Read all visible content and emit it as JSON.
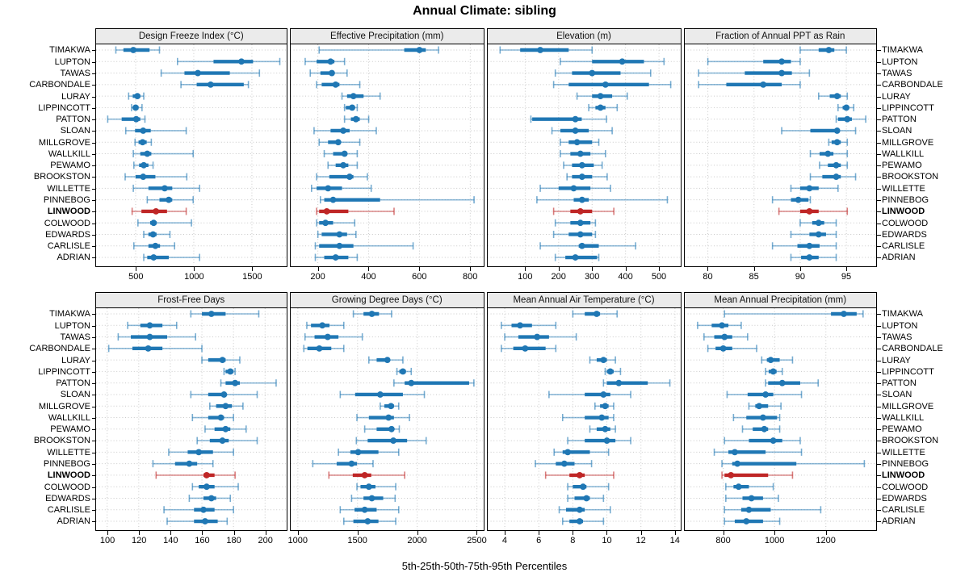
{
  "title": "Annual Climate: sibling",
  "xlabel": "5th-25th-50th-75th-95th Percentiles",
  "colors": {
    "series": "#1f77b4",
    "highlight": "#bf2626",
    "strip_bg": "#ebebeb",
    "grid": "#c9c9c9",
    "border": "#000000"
  },
  "chart_data": {
    "type": "percentile_dot_plot",
    "title": "Annual Climate: sibling",
    "xlabel": "5th-25th-50th-75th-95th Percentiles",
    "percentiles": [
      5,
      25,
      50,
      75,
      95
    ],
    "grid": "dotted",
    "legend_position": "none",
    "highlight_site": "LINWOOD",
    "sites": [
      "TIMAKWA",
      "LUPTON",
      "TAWAS",
      "CARBONDALE",
      "LURAY",
      "LIPPINCOTT",
      "PATTON",
      "SLOAN",
      "MILLGROVE",
      "WALLKILL",
      "PEWAMO",
      "BROOKSTON",
      "WILLETTE",
      "PINNEBOG",
      "LINWOOD",
      "COLWOOD",
      "EDWARDS",
      "CARLISLE",
      "ADRIAN"
    ],
    "panels": [
      {
        "title": "Design Freeze Index (°C)",
        "xlim": [
          160,
          1790
        ],
        "xticks": [
          500,
          1000,
          1500
        ],
        "values": [
          [
            330,
            395,
            480,
            620,
            705
          ],
          [
            860,
            1170,
            1410,
            1510,
            1740
          ],
          [
            720,
            920,
            1035,
            1310,
            1565
          ],
          [
            890,
            1025,
            1145,
            1430,
            1470
          ],
          [
            440,
            475,
            515,
            540,
            570
          ],
          [
            465,
            480,
            500,
            525,
            555
          ],
          [
            260,
            380,
            505,
            540,
            580
          ],
          [
            415,
            495,
            565,
            630,
            935
          ],
          [
            495,
            525,
            560,
            595,
            635
          ],
          [
            480,
            540,
            600,
            635,
            995
          ],
          [
            485,
            530,
            570,
            610,
            650
          ],
          [
            410,
            500,
            565,
            670,
            940
          ],
          [
            480,
            610,
            750,
            815,
            1050
          ],
          [
            600,
            705,
            785,
            815,
            995
          ],
          [
            470,
            550,
            675,
            770,
            935
          ],
          [
            520,
            625,
            655,
            680,
            980
          ],
          [
            570,
            610,
            650,
            680,
            795
          ],
          [
            485,
            610,
            670,
            710,
            835
          ],
          [
            570,
            600,
            655,
            785,
            1050
          ]
        ]
      },
      {
        "title": "Effective Precipitation (mm)",
        "xlim": [
          93,
          852
        ],
        "xticks": [
          200,
          400,
          600,
          800
        ],
        "values": [
          [
            205,
            540,
            600,
            625,
            675
          ],
          [
            150,
            195,
            250,
            265,
            305
          ],
          [
            170,
            210,
            255,
            265,
            315
          ],
          [
            195,
            215,
            270,
            285,
            365
          ],
          [
            295,
            315,
            340,
            380,
            445
          ],
          [
            305,
            310,
            335,
            345,
            355
          ],
          [
            305,
            330,
            350,
            365,
            400
          ],
          [
            185,
            250,
            300,
            325,
            430
          ],
          [
            205,
            240,
            280,
            290,
            365
          ],
          [
            225,
            260,
            305,
            315,
            355
          ],
          [
            240,
            270,
            300,
            320,
            355
          ],
          [
            195,
            245,
            325,
            340,
            395
          ],
          [
            175,
            195,
            240,
            295,
            410
          ],
          [
            210,
            225,
            260,
            445,
            815
          ],
          [
            195,
            205,
            235,
            320,
            500
          ],
          [
            195,
            205,
            230,
            260,
            345
          ],
          [
            200,
            215,
            285,
            315,
            350
          ],
          [
            190,
            205,
            285,
            340,
            575
          ],
          [
            190,
            225,
            270,
            320,
            355
          ]
        ]
      },
      {
        "title": "Elevation (m)",
        "xlim": [
          -12,
          563
        ],
        "xticks": [
          100,
          200,
          300,
          400,
          500
        ],
        "values": [
          [
            25,
            85,
            145,
            230,
            300
          ],
          [
            205,
            300,
            390,
            455,
            515
          ],
          [
            190,
            240,
            300,
            385,
            475
          ],
          [
            185,
            230,
            340,
            470,
            535
          ],
          [
            255,
            300,
            325,
            360,
            405
          ],
          [
            290,
            310,
            325,
            340,
            375
          ],
          [
            117,
            121,
            250,
            269,
            343
          ],
          [
            180,
            205,
            250,
            290,
            360
          ],
          [
            205,
            230,
            255,
            300,
            320
          ],
          [
            205,
            235,
            265,
            295,
            340
          ],
          [
            215,
            240,
            270,
            305,
            330
          ],
          [
            225,
            240,
            270,
            300,
            345
          ],
          [
            145,
            200,
            245,
            295,
            355
          ],
          [
            135,
            245,
            270,
            290,
            525
          ],
          [
            185,
            235,
            265,
            300,
            365
          ],
          [
            190,
            235,
            265,
            295,
            310
          ],
          [
            185,
            230,
            265,
            300,
            310
          ],
          [
            145,
            260,
            270,
            320,
            430
          ],
          [
            190,
            220,
            250,
            315,
            320
          ]
        ]
      },
      {
        "title": "Fraction of Annual PPT as Rain",
        "xlim": [
          77.5,
          98.2
        ],
        "xticks": [
          80,
          85,
          90,
          95
        ],
        "values": [
          [
            90,
            92,
            93.1,
            93.7,
            95
          ],
          [
            80,
            86,
            88,
            89,
            90
          ],
          [
            79,
            84,
            88,
            89.1,
            91
          ],
          [
            79,
            82,
            86,
            88,
            90
          ],
          [
            92,
            93.2,
            94,
            94.4,
            95.1
          ],
          [
            94.1,
            94.6,
            95,
            95.3,
            95.8
          ],
          [
            93.9,
            94.1,
            95.1,
            95.6,
            97.1
          ],
          [
            88,
            91.1,
            94,
            94.2,
            96
          ],
          [
            93.1,
            93.4,
            94,
            94.4,
            95.1
          ],
          [
            91.1,
            92.1,
            93,
            93.6,
            95.1
          ],
          [
            92.1,
            93,
            93.9,
            94.4,
            95.1
          ],
          [
            91.1,
            92.4,
            93.9,
            94.4,
            96
          ],
          [
            89,
            90,
            91,
            92,
            94.1
          ],
          [
            87,
            89,
            89.8,
            90.9,
            91.1
          ],
          [
            87.7,
            90,
            91,
            92,
            95.1
          ],
          [
            90,
            91.3,
            92,
            92.6,
            93.9
          ],
          [
            89,
            91,
            92,
            92.8,
            93.9
          ],
          [
            87,
            89.7,
            91,
            92.1,
            93.9
          ],
          [
            89,
            90.1,
            91,
            92,
            93.9
          ]
        ]
      },
      {
        "title": "Frost-Free Days",
        "xlim": [
          93,
          213
        ],
        "xticks": [
          100,
          120,
          140,
          160,
          180,
          200
        ],
        "values": [
          [
            153,
            160,
            166,
            175,
            196
          ],
          [
            113,
            121,
            127,
            135,
            144
          ],
          [
            107,
            115,
            127,
            138,
            156
          ],
          [
            101,
            116,
            126,
            135,
            160
          ],
          [
            160,
            164,
            173,
            175,
            184
          ],
          [
            174,
            175,
            178,
            180,
            181
          ],
          [
            172,
            175,
            181,
            184,
            207
          ],
          [
            153,
            164,
            174,
            175,
            195
          ],
          [
            165,
            169,
            175,
            179,
            186
          ],
          [
            154,
            164,
            172,
            174,
            180
          ],
          [
            162,
            168,
            175,
            178,
            188
          ],
          [
            157,
            165,
            173,
            177,
            195
          ],
          [
            139,
            151,
            158,
            167,
            180
          ],
          [
            129,
            143,
            152,
            157,
            167
          ],
          [
            131,
            161,
            163,
            168,
            181
          ],
          [
            154,
            158,
            163,
            168,
            183
          ],
          [
            152,
            161,
            166,
            169,
            178
          ],
          [
            136,
            155,
            161,
            168,
            180
          ],
          [
            138,
            155,
            162,
            170,
            176
          ]
        ]
      },
      {
        "title": "Growing Degree Days (°C)",
        "xlim": [
          940,
          2555
        ],
        "xticks": [
          1000,
          1500,
          2000,
          2500
        ],
        "values": [
          [
            1465,
            1550,
            1620,
            1680,
            1785
          ],
          [
            1075,
            1110,
            1205,
            1265,
            1385
          ],
          [
            1060,
            1140,
            1250,
            1340,
            1540
          ],
          [
            1050,
            1080,
            1180,
            1280,
            1385
          ],
          [
            1595,
            1660,
            1750,
            1770,
            1880
          ],
          [
            1830,
            1850,
            1880,
            1905,
            1950
          ],
          [
            1805,
            1895,
            1950,
            2435,
            2475
          ],
          [
            1355,
            1480,
            1690,
            1880,
            2060
          ],
          [
            1690,
            1725,
            1780,
            1805,
            1845
          ],
          [
            1495,
            1595,
            1760,
            1805,
            1935
          ],
          [
            1560,
            1660,
            1785,
            1805,
            1850
          ],
          [
            1490,
            1585,
            1800,
            1915,
            2075
          ],
          [
            1340,
            1440,
            1505,
            1675,
            1845
          ],
          [
            1125,
            1325,
            1450,
            1495,
            1630
          ],
          [
            1260,
            1460,
            1560,
            1615,
            1895
          ],
          [
            1495,
            1525,
            1595,
            1650,
            1820
          ],
          [
            1450,
            1550,
            1620,
            1715,
            1815
          ],
          [
            1355,
            1475,
            1560,
            1660,
            1845
          ],
          [
            1385,
            1465,
            1585,
            1675,
            1820
          ]
        ]
      },
      {
        "title": "Mean Annual Air Temperature (°C)",
        "xlim": [
          3.0,
          14.3
        ],
        "xticks": [
          4,
          6,
          8,
          10,
          12,
          14
        ],
        "values": [
          [
            8.0,
            8.7,
            9.4,
            9.6,
            10.6
          ],
          [
            3.8,
            4.4,
            4.9,
            5.6,
            7.0
          ],
          [
            4.0,
            4.8,
            5.9,
            6.6,
            8.2
          ],
          [
            3.8,
            4.5,
            5.2,
            6.4,
            7.0
          ],
          [
            9.0,
            9.4,
            9.8,
            10.0,
            10.5
          ],
          [
            9.9,
            10.0,
            10.2,
            10.4,
            10.8
          ],
          [
            9.8,
            10.0,
            10.7,
            12.4,
            13.7
          ],
          [
            6.6,
            8.7,
            9.8,
            10.2,
            11.4
          ],
          [
            9.3,
            9.6,
            9.9,
            10.1,
            10.4
          ],
          [
            7.4,
            8.7,
            9.7,
            10.1,
            10.4
          ],
          [
            9.0,
            9.4,
            9.9,
            10.2,
            10.5
          ],
          [
            7.7,
            8.7,
            10.0,
            10.5,
            11.4
          ],
          [
            6.9,
            7.4,
            7.7,
            9.0,
            10.1
          ],
          [
            5.8,
            7.0,
            7.5,
            8.1,
            9.1
          ],
          [
            6.4,
            7.8,
            8.4,
            8.7,
            10.4
          ],
          [
            7.7,
            8.0,
            8.6,
            8.8,
            10.1
          ],
          [
            7.7,
            8.1,
            8.8,
            9.0,
            9.8
          ],
          [
            7.2,
            7.6,
            8.4,
            8.7,
            10.2
          ],
          [
            7.4,
            7.8,
            8.4,
            8.6,
            9.8
          ]
        ]
      },
      {
        "title": "Mean Annual Precipitation (mm)",
        "xlim": [
          650,
          1395
        ],
        "xticks": [
          800,
          1000,
          1200
        ],
        "values": [
          [
            805,
            1220,
            1270,
            1320,
            1345
          ],
          [
            700,
            755,
            795,
            820,
            870
          ],
          [
            725,
            765,
            805,
            835,
            895
          ],
          [
            740,
            770,
            800,
            835,
            930
          ],
          [
            950,
            970,
            985,
            1020,
            1070
          ],
          [
            965,
            977,
            995,
            1008,
            1030
          ],
          [
            965,
            975,
            1030,
            1100,
            1170
          ],
          [
            815,
            895,
            965,
            995,
            1105
          ],
          [
            900,
            925,
            940,
            975,
            1025
          ],
          [
            840,
            890,
            955,
            1010,
            1020
          ],
          [
            875,
            915,
            960,
            975,
            1020
          ],
          [
            805,
            900,
            995,
            1030,
            1100
          ],
          [
            765,
            820,
            845,
            965,
            1105
          ],
          [
            795,
            835,
            855,
            1085,
            1350
          ],
          [
            795,
            805,
            830,
            975,
            1070
          ],
          [
            810,
            840,
            860,
            900,
            995
          ],
          [
            810,
            875,
            910,
            955,
            1015
          ],
          [
            805,
            870,
            900,
            985,
            1180
          ],
          [
            805,
            845,
            890,
            955,
            1020
          ]
        ]
      }
    ]
  }
}
